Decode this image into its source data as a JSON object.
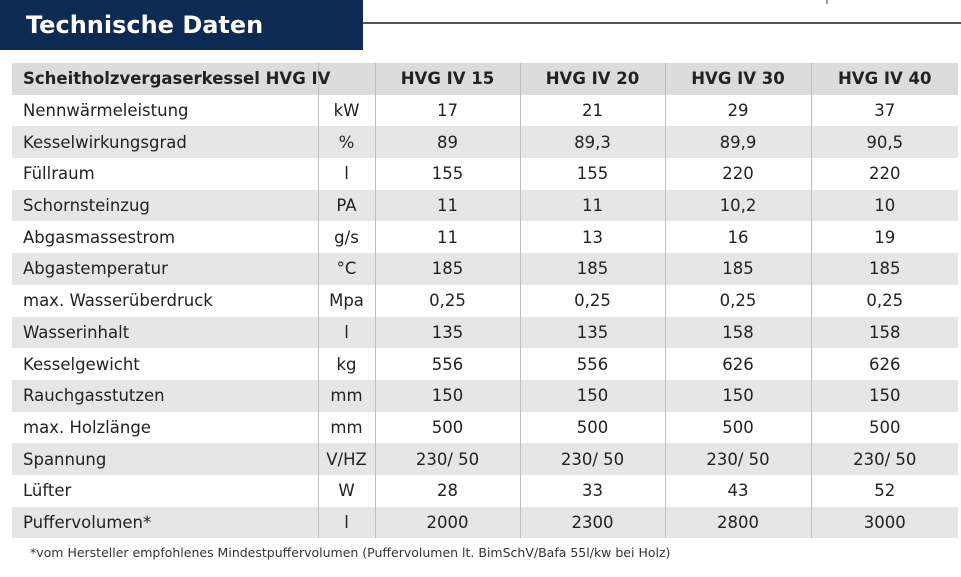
{
  "title": "Technische Daten",
  "table": {
    "header": [
      "Scheitholzvergaserkessel HVG IV",
      "",
      "HVG IV 15",
      "HVG IV 20",
      "HVG IV 30",
      "HVG IV 40"
    ],
    "rows": [
      {
        "label": "Nennwärmeleistung",
        "unit": "kW",
        "values": [
          "17",
          "21",
          "29",
          "37"
        ]
      },
      {
        "label": "Kesselwirkungsgrad",
        "unit": "%",
        "values": [
          "89",
          "89,3",
          "89,9",
          "90,5"
        ]
      },
      {
        "label": "Füllraum",
        "unit": "l",
        "values": [
          "155",
          "155",
          "220",
          "220"
        ]
      },
      {
        "label": "Schornsteinzug",
        "unit": "PA",
        "values": [
          "11",
          "11",
          "10,2",
          "10"
        ]
      },
      {
        "label": "Abgasmassestrom",
        "unit": "g/s",
        "values": [
          "11",
          "13",
          "16",
          "19"
        ]
      },
      {
        "label": "Abgastemperatur",
        "unit": "°C",
        "values": [
          "185",
          "185",
          "185",
          "185"
        ]
      },
      {
        "label": "max. Wasserüberdruck",
        "unit": "Mpa",
        "values": [
          "0,25",
          "0,25",
          "0,25",
          "0,25"
        ]
      },
      {
        "label": "Wasserinhalt",
        "unit": "l",
        "values": [
          "135",
          "135",
          "158",
          "158"
        ]
      },
      {
        "label": "Kesselgewicht",
        "unit": "kg",
        "values": [
          "556",
          "556",
          "626",
          "626"
        ]
      },
      {
        "label": "Rauchgasstutzen",
        "unit": "mm",
        "values": [
          "150",
          "150",
          "150",
          "150"
        ]
      },
      {
        "label": "max. Holzlänge",
        "unit": "mm",
        "values": [
          "500",
          "500",
          "500",
          "500"
        ]
      },
      {
        "label": "Spannung",
        "unit": "V/HZ",
        "values": [
          "230/ 50",
          "230/ 50",
          "230/ 50",
          "230/ 50"
        ]
      },
      {
        "label": "Lüfter",
        "unit": "W",
        "values": [
          "28",
          "33",
          "43",
          "52"
        ]
      },
      {
        "label": "Puffervolumen*",
        "unit": "l",
        "values": [
          "2000",
          "2300",
          "2800",
          "3000"
        ]
      }
    ]
  },
  "footnote": "*vom Hersteller empfohlenes Mindestpuffervolumen (Puffervolumen lt. BimSchV/Bafa 55l/kw bei Holz)",
  "colors": {
    "title_bg": "#0d2b52",
    "header_bg": "#dcdcdc",
    "stripe_bg": "#e6e6e6"
  }
}
